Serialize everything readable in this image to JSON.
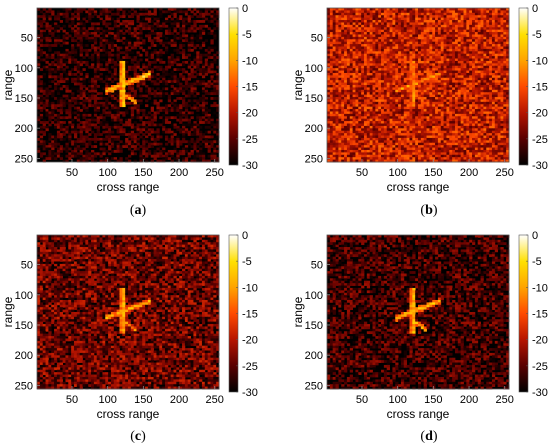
{
  "figure": {
    "panels": [
      {
        "label_prefix": "(",
        "label_letter": "a",
        "label_suffix": ")"
      },
      {
        "label_prefix": "(",
        "label_letter": "b",
        "label_suffix": ")"
      },
      {
        "label_prefix": "(",
        "label_letter": "c",
        "label_suffix": ")"
      },
      {
        "label_prefix": "(",
        "label_letter": "d",
        "label_suffix": ")"
      }
    ]
  },
  "colors": {
    "colormap": [
      "#000000",
      "#5a0000",
      "#b41400",
      "#ff4a00",
      "#ffa500",
      "#ffe000",
      "#ffffff"
    ]
  },
  "chart_data": [
    {
      "type": "heatmap",
      "xlabel": "cross range",
      "ylabel": "range",
      "x_ticks": [
        50,
        100,
        150,
        200,
        250
      ],
      "y_ticks": [
        50,
        100,
        150,
        200,
        250
      ],
      "xlim": [
        1,
        256
      ],
      "ylim": [
        1,
        256
      ],
      "y_reversed": true,
      "colorbar": {
        "range": [
          -30,
          0
        ],
        "ticks": [
          0,
          -5,
          -10,
          -15,
          -20,
          -25,
          -30
        ]
      },
      "noise_level_db": -27,
      "target_level_db": -6
    },
    {
      "type": "heatmap",
      "xlabel": "cross range",
      "ylabel": "range",
      "x_ticks": [
        50,
        100,
        150,
        200,
        250
      ],
      "y_ticks": [
        50,
        100,
        150,
        200,
        250
      ],
      "xlim": [
        1,
        256
      ],
      "ylim": [
        1,
        256
      ],
      "y_reversed": true,
      "colorbar": {
        "range": [
          -30,
          0
        ],
        "ticks": [
          0,
          -5,
          -10,
          -15,
          -20,
          -25,
          -30
        ]
      },
      "noise_level_db": -18,
      "target_level_db": -10
    },
    {
      "type": "heatmap",
      "xlabel": "cross range",
      "ylabel": "range",
      "x_ticks": [
        50,
        100,
        150,
        200,
        250
      ],
      "y_ticks": [
        50,
        100,
        150,
        200,
        250
      ],
      "xlim": [
        1,
        256
      ],
      "ylim": [
        1,
        256
      ],
      "y_reversed": true,
      "colorbar": {
        "range": [
          -30,
          0
        ],
        "ticks": [
          0,
          -5,
          -10,
          -15,
          -20,
          -25,
          -30
        ]
      },
      "noise_level_db": -23,
      "target_level_db": -8
    },
    {
      "type": "heatmap",
      "xlabel": "cross range",
      "ylabel": "range",
      "x_ticks": [
        50,
        100,
        150,
        200,
        250
      ],
      "y_ticks": [
        50,
        100,
        150,
        200,
        250
      ],
      "xlim": [
        1,
        256
      ],
      "ylim": [
        1,
        256
      ],
      "y_reversed": true,
      "colorbar": {
        "range": [
          -30,
          0
        ],
        "ticks": [
          0,
          -5,
          -10,
          -15,
          -20,
          -25,
          -30
        ]
      },
      "noise_level_db": -26,
      "target_level_db": -7
    }
  ]
}
